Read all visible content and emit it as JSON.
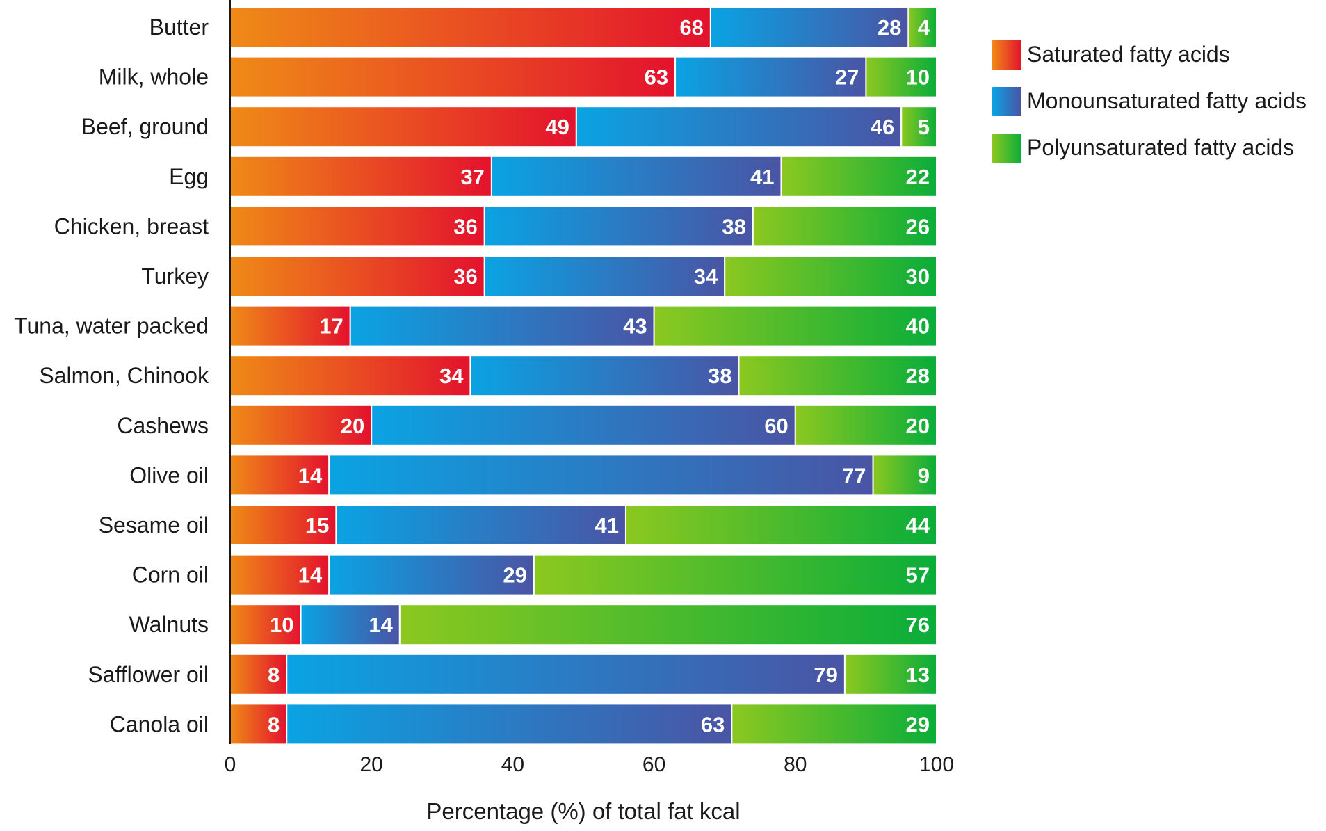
{
  "chart_data": {
    "type": "bar",
    "orientation": "horizontal",
    "stacked": true,
    "title": "",
    "xlabel": "Percentage (%) of total fat kcal",
    "ylabel": "",
    "xlim": [
      0,
      100
    ],
    "xticks": [
      0,
      20,
      40,
      60,
      80,
      100
    ],
    "legend_position": "top-right",
    "grid": false,
    "categories": [
      "Butter",
      "Milk, whole",
      "Beef, ground",
      "Egg",
      "Chicken, breast",
      "Turkey",
      "Tuna, water packed",
      "Salmon, Chinook",
      "Cashews",
      "Olive oil",
      "Sesame oil",
      "Corn oil",
      "Walnuts",
      "Safflower oil",
      "Canola oil"
    ],
    "series": [
      {
        "name": "Saturated fatty acids",
        "values": [
          68,
          63,
          49,
          37,
          36,
          36,
          17,
          34,
          20,
          14,
          15,
          14,
          10,
          8,
          8
        ],
        "color_start": "#ef8a17",
        "color_end": "#e3122d"
      },
      {
        "name": "Monounsaturated fatty acids",
        "values": [
          28,
          27,
          46,
          41,
          38,
          34,
          43,
          38,
          60,
          77,
          41,
          29,
          14,
          79,
          63
        ],
        "color_start": "#0aa3e3",
        "color_end": "#4a54a4"
      },
      {
        "name": "Polyunsaturated fatty acids",
        "values": [
          4,
          10,
          5,
          22,
          26,
          30,
          40,
          28,
          20,
          9,
          44,
          57,
          76,
          13,
          29
        ],
        "color_start": "#8cc820",
        "color_end": "#0aad3a"
      }
    ]
  }
}
